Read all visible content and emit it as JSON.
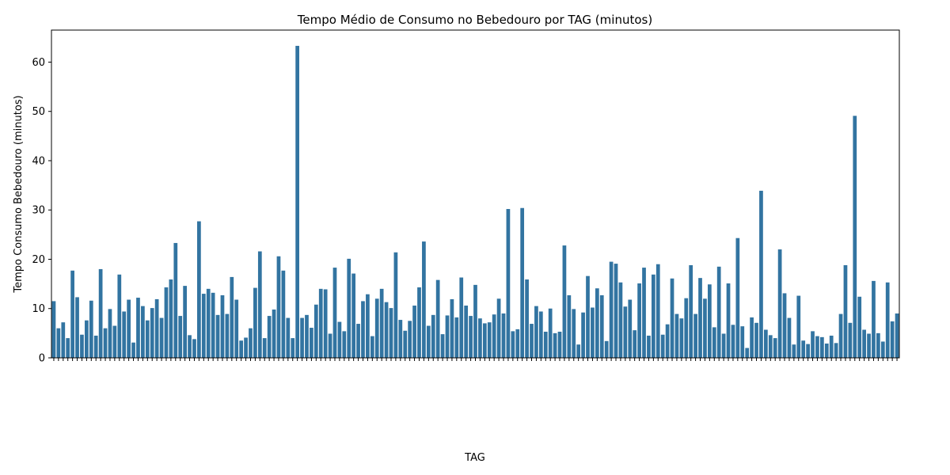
{
  "chart_data": {
    "type": "bar",
    "title": "Tempo Médio de Consumo no Bebedouro por TAG (minutos)",
    "xlabel": "TAG",
    "ylabel": "Tempo Consumo Bebedouro (minutos)",
    "ylim": [
      0,
      66.5
    ],
    "yticks": [
      0,
      10,
      20,
      30,
      40,
      50,
      60
    ],
    "grid": false,
    "bar_color": "#3274a1",
    "values": [
      11.5,
      6.0,
      7.2,
      4.0,
      17.7,
      12.3,
      4.7,
      7.6,
      11.6,
      4.5,
      18.0,
      6.0,
      9.9,
      6.5,
      16.9,
      9.4,
      11.8,
      3.1,
      12.2,
      10.5,
      7.6,
      10.1,
      11.9,
      8.1,
      14.3,
      15.9,
      23.3,
      8.5,
      14.6,
      4.6,
      3.8,
      27.7,
      13.0,
      14.0,
      13.2,
      8.7,
      12.7,
      8.9,
      16.4,
      11.8,
      3.5,
      4.1,
      6.0,
      14.2,
      21.6,
      4.0,
      8.5,
      9.8,
      20.6,
      17.7,
      8.1,
      4.0,
      63.3,
      8.1,
      8.7,
      6.1,
      10.8,
      14.0,
      13.9,
      4.9,
      18.3,
      7.3,
      5.4,
      20.1,
      17.1,
      6.9,
      11.5,
      12.9,
      4.4,
      12.0,
      14.0,
      11.3,
      10.1,
      21.4,
      7.7,
      5.5,
      7.5,
      10.6,
      14.3,
      23.6,
      6.5,
      8.7,
      15.8,
      4.8,
      8.6,
      11.9,
      8.2,
      16.3,
      10.6,
      8.5,
      14.8,
      8.0,
      7.0,
      7.2,
      8.8,
      12.0,
      9.0,
      30.2,
      5.4,
      5.8,
      30.4,
      15.9,
      6.9,
      10.5,
      9.4,
      5.3,
      10.0,
      5.0,
      5.3,
      22.8,
      12.7,
      9.9,
      2.7,
      9.2,
      16.6,
      10.2,
      14.1,
      12.7,
      3.4,
      19.5,
      19.1,
      15.3,
      10.4,
      11.8,
      5.6,
      15.1,
      18.3,
      4.5,
      16.9,
      19.0,
      4.7,
      6.8,
      16.1,
      8.9,
      8.0,
      12.1,
      18.8,
      8.9,
      16.2,
      12.0,
      14.9,
      6.2,
      18.5,
      4.9,
      15.1,
      6.7,
      24.3,
      6.4,
      2.0,
      8.2,
      7.1,
      33.9,
      5.7,
      4.6,
      4.0,
      22.0,
      13.1,
      8.1,
      2.7,
      12.6,
      3.5,
      2.8,
      5.4,
      4.4,
      4.2,
      2.9,
      4.5,
      3.0,
      8.9,
      18.8,
      7.1,
      49.1,
      12.4,
      5.7,
      4.9,
      15.6,
      5.0,
      3.3,
      15.3,
      7.4,
      9.0
    ],
    "category_labels_note": "x tick labels are overlapping and illegible"
  }
}
